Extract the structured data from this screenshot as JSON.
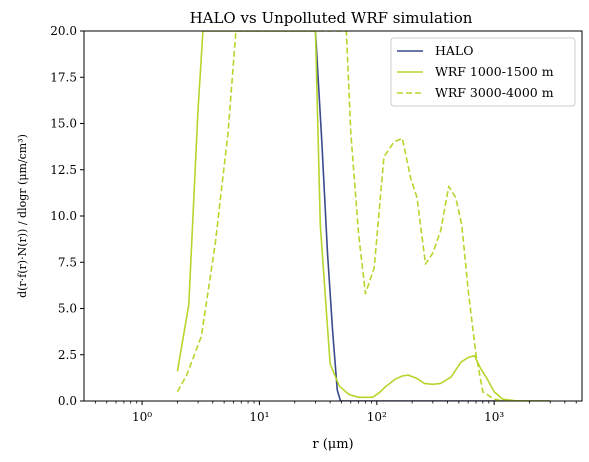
{
  "chart_data": {
    "type": "line",
    "title": "HALO vs Unpolluted WRF simulation",
    "xlabel": "r (μm)",
    "ylabel": "d(r·f(r)·N(r)) / dlogr (μm/cm³)",
    "x_scale": "log",
    "xlim": [
      0.32,
      5600
    ],
    "ylim": [
      0,
      20
    ],
    "x_ticks": [
      1,
      10,
      100,
      1000
    ],
    "x_tick_labels": [
      "10⁰",
      "10¹",
      "10²",
      "10³"
    ],
    "y_ticks": [
      0,
      2.5,
      5,
      7.5,
      10,
      12.5,
      15,
      17.5,
      20
    ],
    "y_tick_labels": [
      "0.0",
      "2.5",
      "5.0",
      "7.5",
      "10.0",
      "12.5",
      "15.0",
      "17.5",
      "20.0"
    ],
    "grid": false,
    "legend_position": "upper right",
    "series": [
      {
        "name": "HALO",
        "color": "#3b4a8c",
        "style": "solid",
        "x": [
          30,
          34,
          38,
          42,
          46,
          49,
          52,
          60,
          100,
          1000,
          3000
        ],
        "y": [
          20,
          14,
          8,
          3.8,
          0.6,
          0,
          0,
          0,
          0,
          0,
          0
        ]
      },
      {
        "name": "WRF 1000-1500 m",
        "color": "#b5d62d",
        "style": "solid",
        "x": [
          2.0,
          2.5,
          3.0,
          3.3,
          30,
          33,
          40,
          48,
          58,
          70,
          80,
          92,
          105,
          120,
          145,
          165,
          185,
          215,
          255,
          300,
          350,
          430,
          520,
          600,
          680,
          760,
          870,
          1000,
          1180,
          1500,
          2000,
          3000
        ],
        "y": [
          1.6,
          5.2,
          15.8,
          20,
          20,
          9.5,
          2.0,
          0.8,
          0.35,
          0.2,
          0.2,
          0.2,
          0.45,
          0.8,
          1.2,
          1.35,
          1.4,
          1.25,
          0.95,
          0.9,
          0.95,
          1.3,
          2.1,
          2.35,
          2.45,
          1.8,
          1.2,
          0.5,
          0.1,
          0.02,
          0.0,
          0.0
        ]
      },
      {
        "name": "WRF 3000-4000 m",
        "color": "#b5d62d",
        "style": "dashed",
        "x": [
          2.0,
          2.4,
          3.2,
          4.2,
          5.4,
          6.3,
          55,
          60,
          70,
          80,
          95,
          115,
          140,
          165,
          195,
          220,
          260,
          300,
          350,
          410,
          470,
          530,
          600,
          700,
          800,
          1000,
          1200,
          1500,
          2000,
          3000
        ],
        "y": [
          0.5,
          1.4,
          3.5,
          8.5,
          14.5,
          20,
          20,
          14.5,
          9,
          5.8,
          7.2,
          13.2,
          14.0,
          14.2,
          12.0,
          11.0,
          7.4,
          8.0,
          9.2,
          11.6,
          11.0,
          9.5,
          6.0,
          2.5,
          0.5,
          0.1,
          0.0,
          0.0,
          0.0,
          0.0
        ]
      }
    ]
  }
}
